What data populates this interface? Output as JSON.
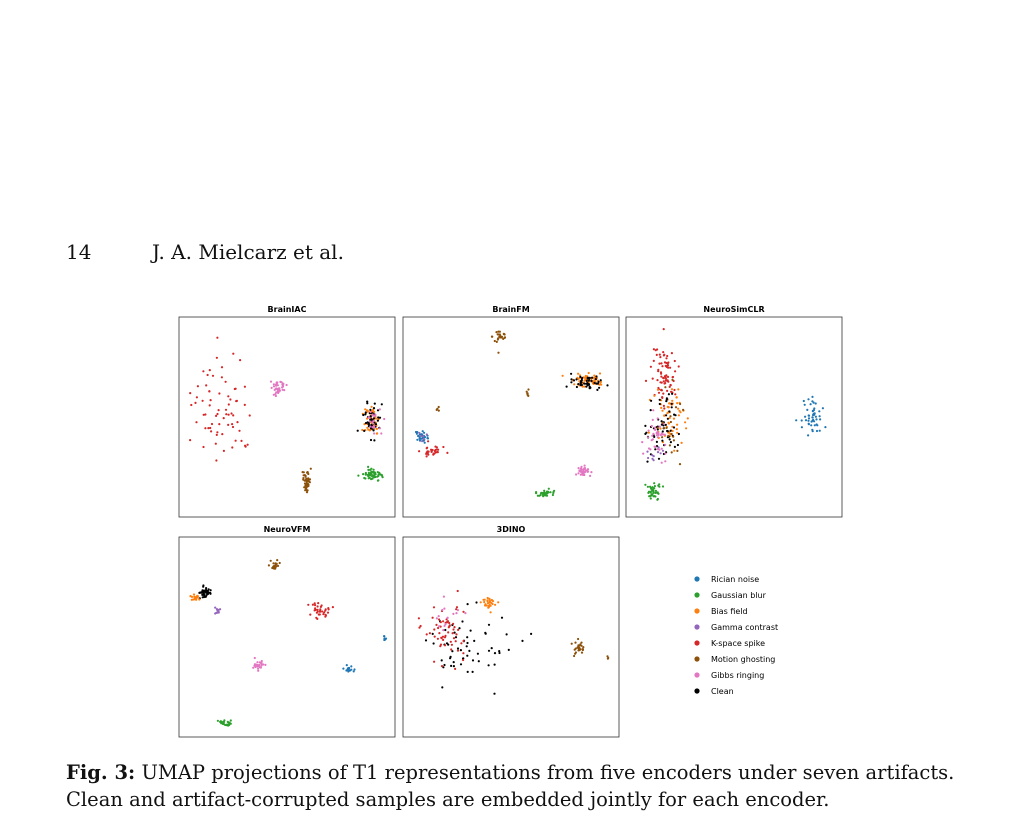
{
  "page": {
    "number": "14",
    "running_head": "J. A. Mielcarz et al."
  },
  "caption": {
    "label": "Fig. 3:",
    "text": "UMAP projections of T1 representations from five encoders under seven artifacts. Clean and artifact-corrupted samples are embedded jointly for each encoder."
  },
  "legend": [
    {
      "name": "Rician noise",
      "color": "#1f77b4"
    },
    {
      "name": "Gaussian blur",
      "color": "#2ca02c"
    },
    {
      "name": "Bias field",
      "color": "#ff7f0e"
    },
    {
      "name": "Gamma contrast",
      "color": "#9467bd"
    },
    {
      "name": "K-space spike",
      "color": "#d62728"
    },
    {
      "name": "Motion ghosting",
      "color": "#8c510a"
    },
    {
      "name": "Gibbs ringing",
      "color": "#e377c2"
    },
    {
      "name": "Clean",
      "color": "#000000"
    }
  ],
  "chart_data": [
    {
      "type": "scatter",
      "title": "BrainIAC",
      "xlim": [
        0,
        1
      ],
      "ylim": [
        0,
        1
      ],
      "clusters": [
        {
          "series": "K-space spike",
          "cx": 0.2,
          "cy": 0.45,
          "sx": 0.12,
          "sy": 0.22,
          "n": 70
        },
        {
          "series": "Gibbs ringing",
          "cx": 0.46,
          "cy": 0.35,
          "sx": 0.03,
          "sy": 0.03,
          "n": 40
        },
        {
          "series": "Bias field",
          "cx": 0.89,
          "cy": 0.52,
          "sx": 0.03,
          "sy": 0.07,
          "n": 60
        },
        {
          "series": "Clean",
          "cx": 0.89,
          "cy": 0.52,
          "sx": 0.03,
          "sy": 0.07,
          "n": 50
        },
        {
          "series": "Gibbs ringing",
          "cx": 0.9,
          "cy": 0.52,
          "sx": 0.03,
          "sy": 0.06,
          "n": 20
        },
        {
          "series": "Gaussian blur",
          "cx": 0.9,
          "cy": 0.79,
          "sx": 0.04,
          "sy": 0.02,
          "n": 55
        },
        {
          "series": "Motion ghosting",
          "cx": 0.59,
          "cy": 0.82,
          "sx": 0.015,
          "sy": 0.04,
          "n": 50
        }
      ]
    },
    {
      "type": "scatter",
      "title": "BrainFM",
      "xlim": [
        0,
        1
      ],
      "ylim": [
        0,
        1
      ],
      "clusters": [
        {
          "series": "Motion ghosting",
          "cx": 0.45,
          "cy": 0.1,
          "sx": 0.03,
          "sy": 0.04,
          "n": 25
        },
        {
          "series": "Motion ghosting",
          "cx": 0.58,
          "cy": 0.38,
          "sx": 0.01,
          "sy": 0.02,
          "n": 6
        },
        {
          "series": "Motion ghosting",
          "cx": 0.16,
          "cy": 0.46,
          "sx": 0.01,
          "sy": 0.01,
          "n": 4
        },
        {
          "series": "Bias field",
          "cx": 0.85,
          "cy": 0.31,
          "sx": 0.07,
          "sy": 0.03,
          "n": 60
        },
        {
          "series": "Clean",
          "cx": 0.86,
          "cy": 0.33,
          "sx": 0.06,
          "sy": 0.03,
          "n": 50
        },
        {
          "series": "Rician noise",
          "cx": 0.09,
          "cy": 0.6,
          "sx": 0.03,
          "sy": 0.02,
          "n": 30
        },
        {
          "series": "K-space spike",
          "cx": 0.13,
          "cy": 0.67,
          "sx": 0.04,
          "sy": 0.02,
          "n": 30
        },
        {
          "series": "Gamma contrast",
          "cx": 0.09,
          "cy": 0.6,
          "sx": 0.02,
          "sy": 0.02,
          "n": 6
        },
        {
          "series": "Gibbs ringing",
          "cx": 0.83,
          "cy": 0.77,
          "sx": 0.03,
          "sy": 0.02,
          "n": 35
        },
        {
          "series": "Gaussian blur",
          "cx": 0.66,
          "cy": 0.88,
          "sx": 0.035,
          "sy": 0.02,
          "n": 35
        }
      ]
    },
    {
      "type": "scatter",
      "title": "NeuroSimCLR",
      "xlim": [
        0,
        1
      ],
      "ylim": [
        0,
        1
      ],
      "clusters": [
        {
          "series": "K-space spike",
          "cx": 0.18,
          "cy": 0.3,
          "sx": 0.05,
          "sy": 0.14,
          "n": 80
        },
        {
          "series": "Bias field",
          "cx": 0.2,
          "cy": 0.5,
          "sx": 0.06,
          "sy": 0.12,
          "n": 60
        },
        {
          "series": "Clean",
          "cx": 0.16,
          "cy": 0.55,
          "sx": 0.06,
          "sy": 0.15,
          "n": 60
        },
        {
          "series": "Gibbs ringing",
          "cx": 0.14,
          "cy": 0.6,
          "sx": 0.05,
          "sy": 0.1,
          "n": 40
        },
        {
          "series": "Gamma contrast",
          "cx": 0.14,
          "cy": 0.67,
          "sx": 0.03,
          "sy": 0.04,
          "n": 10
        },
        {
          "series": "Gaussian blur",
          "cx": 0.13,
          "cy": 0.87,
          "sx": 0.03,
          "sy": 0.04,
          "n": 45
        },
        {
          "series": "Motion ghosting",
          "cx": 0.2,
          "cy": 0.55,
          "sx": 0.05,
          "sy": 0.15,
          "n": 20
        },
        {
          "series": "Rician noise",
          "cx": 0.86,
          "cy": 0.5,
          "sx": 0.04,
          "sy": 0.07,
          "n": 50
        }
      ]
    },
    {
      "type": "scatter",
      "title": "NeuroVFM",
      "xlim": [
        0,
        1
      ],
      "ylim": [
        0,
        1
      ],
      "clusters": [
        {
          "series": "Clean",
          "cx": 0.12,
          "cy": 0.28,
          "sx": 0.025,
          "sy": 0.02,
          "n": 40
        },
        {
          "series": "Bias field",
          "cx": 0.08,
          "cy": 0.3,
          "sx": 0.02,
          "sy": 0.015,
          "n": 20
        },
        {
          "series": "Gamma contrast",
          "cx": 0.18,
          "cy": 0.37,
          "sx": 0.015,
          "sy": 0.01,
          "n": 12
        },
        {
          "series": "Motion ghosting",
          "cx": 0.45,
          "cy": 0.14,
          "sx": 0.015,
          "sy": 0.02,
          "n": 20
        },
        {
          "series": "K-space spike",
          "cx": 0.65,
          "cy": 0.37,
          "sx": 0.04,
          "sy": 0.03,
          "n": 35
        },
        {
          "series": "Gibbs ringing",
          "cx": 0.37,
          "cy": 0.64,
          "sx": 0.025,
          "sy": 0.02,
          "n": 25
        },
        {
          "series": "Rician noise",
          "cx": 0.79,
          "cy": 0.66,
          "sx": 0.02,
          "sy": 0.015,
          "n": 20
        },
        {
          "series": "Rician noise",
          "cx": 0.95,
          "cy": 0.51,
          "sx": 0.005,
          "sy": 0.01,
          "n": 6
        },
        {
          "series": "Gaussian blur",
          "cx": 0.21,
          "cy": 0.93,
          "sx": 0.025,
          "sy": 0.015,
          "n": 25
        }
      ]
    },
    {
      "type": "scatter",
      "title": "3DINO",
      "xlim": [
        0,
        1
      ],
      "ylim": [
        0,
        1
      ],
      "clusters": [
        {
          "series": "Clean",
          "cx": 0.3,
          "cy": 0.55,
          "sx": 0.18,
          "sy": 0.15,
          "n": 60
        },
        {
          "series": "K-space spike",
          "cx": 0.2,
          "cy": 0.45,
          "sx": 0.08,
          "sy": 0.12,
          "n": 60
        },
        {
          "series": "Gibbs ringing",
          "cx": 0.2,
          "cy": 0.4,
          "sx": 0.05,
          "sy": 0.08,
          "n": 15
        },
        {
          "series": "Bias field",
          "cx": 0.4,
          "cy": 0.33,
          "sx": 0.03,
          "sy": 0.03,
          "n": 30
        },
        {
          "series": "Motion ghosting",
          "cx": 0.81,
          "cy": 0.55,
          "sx": 0.02,
          "sy": 0.03,
          "n": 25
        },
        {
          "series": "Motion ghosting",
          "cx": 0.95,
          "cy": 0.6,
          "sx": 0.005,
          "sy": 0.005,
          "n": 3
        }
      ]
    }
  ]
}
